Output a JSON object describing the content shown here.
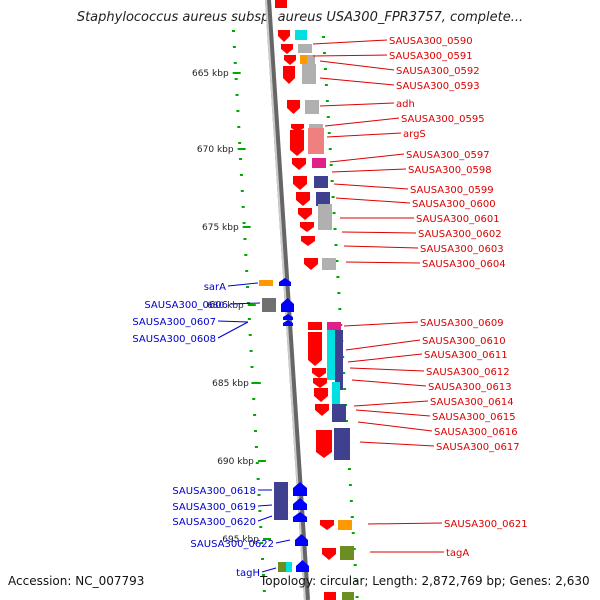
{
  "title": "Staphylococcus aureus subsp. aureus USA300_FPR3757, complete...",
  "footer": {
    "accession": "Accession: NC_007793",
    "summary": "Topology: circular; Length: 2,872,769 bp; Genes: 2,630"
  },
  "ruler": {
    "ticks": [
      "665 kbp",
      "670 kbp",
      "675 kbp",
      "680 kbp",
      "685 kbp",
      "690 kbp",
      "695 kbp"
    ]
  },
  "colors": {
    "red_gene": "#ff0000",
    "blue_gene": "#0000ff",
    "cyan": "#00e0e0",
    "gray": "#b0b0b0",
    "navy": "#404090",
    "orange": "#ff9900",
    "olive": "#6b8e23",
    "magenta": "#e0208a",
    "label_red": "#dd0000",
    "label_blue": "#0000cc",
    "tick_green": "#00aa00"
  },
  "genes_right": [
    "SAUSA300_0590",
    "SAUSA300_0591",
    "SAUSA300_0592",
    "SAUSA300_0593",
    "adh",
    "SAUSA300_0595",
    "argS",
    "SAUSA300_0597",
    "SAUSA300_0598",
    "SAUSA300_0599",
    "SAUSA300_0600",
    "SAUSA300_0601",
    "SAUSA300_0602",
    "SAUSA300_0603",
    "SAUSA300_0604",
    "SAUSA300_0609",
    "SAUSA300_0610",
    "SAUSA300_0611",
    "SAUSA300_0612",
    "SAUSA300_0613",
    "SAUSA300_0614",
    "SAUSA300_0615",
    "SAUSA300_0616",
    "SAUSA300_0617",
    "SAUSA300_0621",
    "tagA"
  ],
  "genes_left": [
    "sarA",
    "SAUSA300_0606",
    "SAUSA300_0607",
    "SAUSA300_0608",
    "SAUSA300_0618",
    "SAUSA300_0619",
    "SAUSA300_0620",
    "SAUSA300_0622",
    "tagH"
  ]
}
